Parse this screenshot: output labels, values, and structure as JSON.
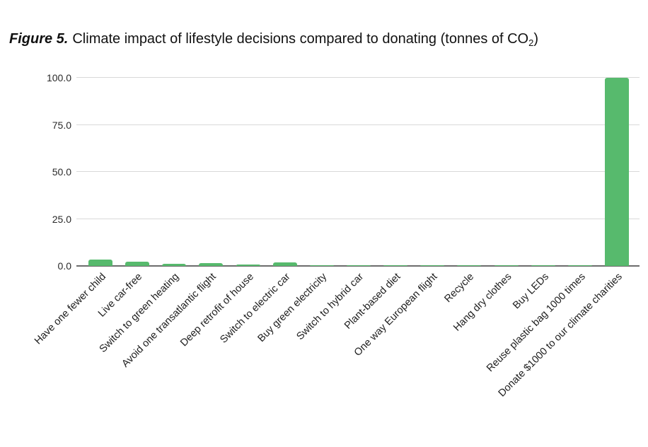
{
  "figure": {
    "title": {
      "label": "Figure 5.",
      "main": "Climate impact of lifestyle decisions compared to donating (tonnes of CO",
      "sub": "2",
      "suffix": ")"
    }
  },
  "chart_data": {
    "type": "bar",
    "title": "Figure 5. Climate impact of lifestyle decisions compared to donating (tonnes of CO2)",
    "categories": [
      "Have one fewer child",
      "Live car-free",
      "Switch to green heating",
      "Avoid one transatlantic flight",
      "Deep retrofit of house",
      "Switch to electric car",
      "Buy green electricity",
      "Switch to hybrid car",
      "Plant-based diet",
      "One way European flight",
      "Recycle",
      "Hang dry clothes",
      "Buy LEDs",
      "Reuse plastic bag 1000 times",
      "Donate $1000 to our climate charities"
    ],
    "values": [
      3.4,
      2.4,
      1.0,
      1.6,
      0.9,
      2.0,
      0.4,
      0.3,
      0.4,
      0.3,
      0.2,
      0.2,
      0.1,
      0.1,
      100
    ],
    "xlabel": "",
    "ylabel": "",
    "ylim": [
      0,
      100
    ],
    "yticks": [
      0,
      25,
      50,
      75,
      100
    ],
    "ytick_labels": [
      "0.0",
      "25.0",
      "50.0",
      "75.0",
      "100.0"
    ],
    "grid": true,
    "legend_position": "none",
    "x_label_rotation_deg": 45
  },
  "colors": {
    "bar": "#57ba6d",
    "gridline": "#d9d9d9",
    "axis_line": "#6b6b6b",
    "title_text": "#111111",
    "tick_text": "#2a2a2a"
  }
}
